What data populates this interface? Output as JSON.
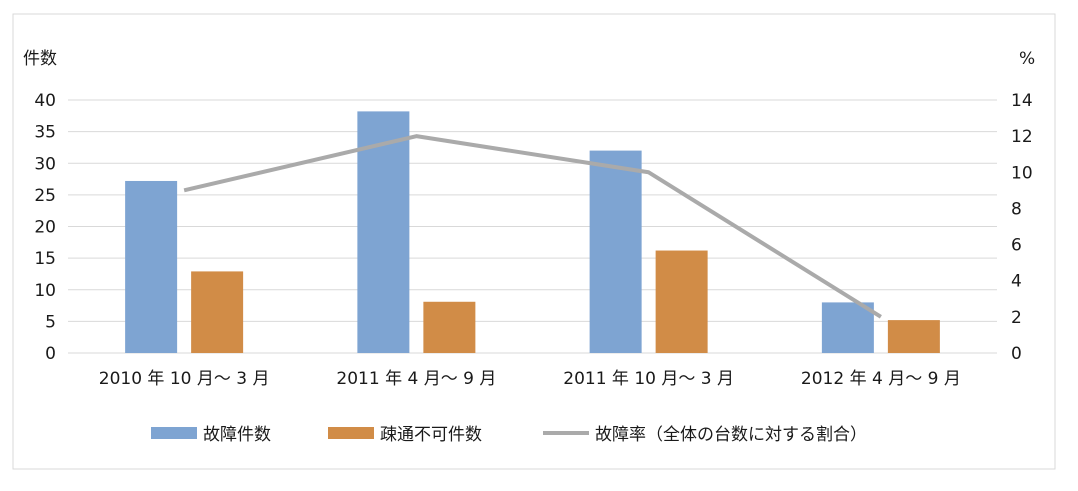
{
  "chart_data": {
    "type": "bar",
    "categories": [
      "2010 年 10 月～ 3 月",
      "2011 年 4 月～ 9 月",
      "2011 年 10 月～ 3 月",
      "2012 年 4 月～ 9 月"
    ],
    "series": [
      {
        "name": "故障件数",
        "type": "bar",
        "axis": "left",
        "color": "#7EA4D2",
        "values": [
          27.2,
          38.2,
          32,
          8
        ]
      },
      {
        "name": "疎通不可件数",
        "type": "bar",
        "axis": "left",
        "color": "#D18C47",
        "values": [
          12.9,
          8.1,
          16.2,
          5.2
        ]
      },
      {
        "name": "故障率（全体の台数に対する割合）",
        "type": "line",
        "axis": "right",
        "color": "#AAAAAA",
        "values": [
          9,
          12,
          10,
          2
        ]
      }
    ],
    "y_left": {
      "label": "件数",
      "range": [
        0,
        40
      ],
      "ticks": [
        "0",
        "5",
        "10",
        "15",
        "20",
        "25",
        "30",
        "35",
        "40"
      ]
    },
    "y_right": {
      "label": "%",
      "range": [
        0,
        14
      ],
      "ticks": [
        "0",
        "2",
        "4",
        "6",
        "8",
        "10",
        "12",
        "14"
      ]
    },
    "grid": true,
    "legend_position": "bottom"
  }
}
